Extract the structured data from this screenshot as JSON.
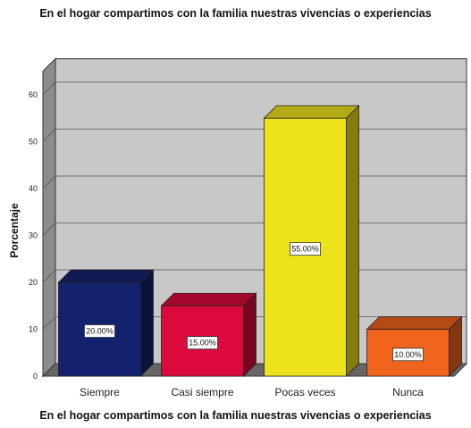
{
  "chart_data": {
    "type": "bar",
    "title": "En el hogar compartimos con la familia nuestras vivencias o experiencias",
    "xlabel": "En el hogar compartimos con la familia nuestras vivencias o experiencias",
    "ylabel": "Porcentaje",
    "categories": [
      "Siempre",
      "Casi siempre",
      "Pocas veces",
      "Nunca"
    ],
    "values": [
      20,
      15,
      55,
      10
    ],
    "data_labels": [
      "20.00%",
      "15.00%",
      "55.00%",
      "10.00%"
    ],
    "colors": [
      "#14226e",
      "#dc0a3c",
      "#eee21c",
      "#f0641e"
    ],
    "yticks": [
      0,
      10,
      20,
      30,
      40,
      50,
      60
    ],
    "ylim": [
      0,
      65
    ],
    "grid": true,
    "style": "3d-bar"
  }
}
